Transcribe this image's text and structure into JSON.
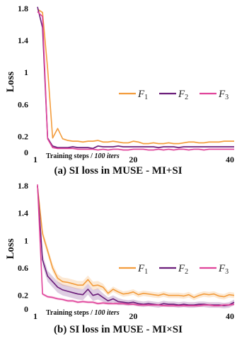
{
  "chart_data": [
    {
      "type": "line",
      "caption": "(a) SI loss in MUSE - MI+SI",
      "ylabel": "Loss",
      "xlabel": "Training steps / ",
      "xlabel_unit": "100 iters",
      "xlim": [
        1,
        40
      ],
      "ylim": [
        0,
        1.8
      ],
      "yticks": [
        "0",
        "0.2",
        "0.6",
        "1",
        "1.4",
        "1.8"
      ],
      "ytick_values": [
        0,
        0.2,
        0.6,
        1,
        1.4,
        1.8
      ],
      "xticks": [
        "1",
        "20",
        "40"
      ],
      "xtick_values": [
        1,
        20,
        40
      ],
      "legend_position": "right-middle",
      "x": [
        1,
        2,
        3,
        4,
        5,
        6,
        7,
        8,
        9,
        10,
        11,
        12,
        13,
        14,
        15,
        16,
        17,
        18,
        19,
        20,
        21,
        22,
        23,
        24,
        25,
        26,
        27,
        28,
        29,
        30,
        31,
        32,
        33,
        34,
        35,
        36,
        37,
        38,
        39,
        40
      ],
      "series": [
        {
          "name": "F",
          "sub": "1",
          "color": "#f39c3c",
          "values": [
            1.79,
            1.75,
            1.05,
            0.18,
            0.3,
            0.17,
            0.15,
            0.14,
            0.14,
            0.13,
            0.14,
            0.14,
            0.15,
            0.13,
            0.13,
            0.14,
            0.13,
            0.12,
            0.12,
            0.14,
            0.13,
            0.11,
            0.11,
            0.12,
            0.11,
            0.11,
            0.12,
            0.11,
            0.11,
            0.12,
            0.13,
            0.13,
            0.12,
            0.12,
            0.13,
            0.13,
            0.13,
            0.14,
            0.14,
            0.14
          ],
          "band": [
            0.01,
            0.01,
            0.01,
            0.01,
            0.01,
            0.01,
            0.01,
            0.01,
            0.01,
            0.01,
            0.01,
            0.01,
            0.01,
            0.01,
            0.01,
            0.01,
            0.01,
            0.01,
            0.01,
            0.01,
            0.01,
            0.01,
            0.01,
            0.01,
            0.01,
            0.01,
            0.01,
            0.01,
            0.01,
            0.01,
            0.01,
            0.01,
            0.01,
            0.01,
            0.01,
            0.01,
            0.01,
            0.01,
            0.01,
            0.01
          ]
        },
        {
          "name": "F",
          "sub": "2",
          "color": "#6b1d7a",
          "values": [
            1.82,
            1.56,
            0.18,
            0.08,
            0.06,
            0.06,
            0.06,
            0.07,
            0.06,
            0.06,
            0.06,
            0.05,
            0.08,
            0.07,
            0.07,
            0.07,
            0.08,
            0.07,
            0.07,
            0.07,
            0.07,
            0.07,
            0.07,
            0.07,
            0.06,
            0.07,
            0.07,
            0.07,
            0.06,
            0.07,
            0.07,
            0.07,
            0.07,
            0.07,
            0.07,
            0.07,
            0.07,
            0.07,
            0.07,
            0.07
          ],
          "band": [
            0.01,
            0.01,
            0.01,
            0.01,
            0.01,
            0.01,
            0.01,
            0.01,
            0.01,
            0.01,
            0.01,
            0.01,
            0.01,
            0.01,
            0.01,
            0.01,
            0.01,
            0.01,
            0.01,
            0.01,
            0.01,
            0.01,
            0.01,
            0.01,
            0.01,
            0.01,
            0.01,
            0.01,
            0.01,
            0.01,
            0.01,
            0.01,
            0.01,
            0.01,
            0.01,
            0.01,
            0.01,
            0.01,
            0.01,
            0.01
          ]
        },
        {
          "name": "F",
          "sub": "3",
          "color": "#e0439a",
          "values": [
            1.76,
            1.7,
            0.17,
            0.06,
            0.05,
            0.05,
            0.05,
            0.05,
            0.04,
            0.04,
            0.04,
            0.04,
            0.03,
            0.04,
            0.03,
            0.04,
            0.04,
            0.03,
            0.03,
            0.04,
            0.04,
            0.04,
            0.03,
            0.03,
            0.04,
            0.03,
            0.04,
            0.03,
            0.04,
            0.04,
            0.03,
            0.04,
            0.04,
            0.03,
            0.04,
            0.04,
            0.04,
            0.04,
            0.04,
            0.04
          ],
          "band": [
            0.01,
            0.01,
            0.01,
            0.01,
            0.01,
            0.01,
            0.01,
            0.01,
            0.01,
            0.01,
            0.01,
            0.01,
            0.01,
            0.01,
            0.01,
            0.01,
            0.01,
            0.01,
            0.01,
            0.01,
            0.01,
            0.01,
            0.01,
            0.01,
            0.01,
            0.01,
            0.01,
            0.01,
            0.01,
            0.01,
            0.01,
            0.01,
            0.01,
            0.01,
            0.01,
            0.01,
            0.01,
            0.01,
            0.01,
            0.01
          ]
        }
      ]
    },
    {
      "type": "line",
      "caption": "(b) SI loss in MUSE - MI×SI",
      "ylabel": "Loss",
      "xlabel": "Training steps / ",
      "xlabel_unit": "100 iters",
      "xlim": [
        1,
        40
      ],
      "ylim": [
        0,
        1.8
      ],
      "yticks": [
        "0",
        "0.2",
        "0.6",
        "1",
        "1.4",
        "1.8"
      ],
      "ytick_values": [
        0,
        0.2,
        0.6,
        1,
        1.4,
        1.8
      ],
      "xticks": [
        "1",
        "20",
        "40"
      ],
      "xtick_values": [
        1,
        20,
        40
      ],
      "legend_position": "right-middle",
      "x": [
        1,
        2,
        3,
        4,
        5,
        6,
        7,
        8,
        9,
        10,
        11,
        12,
        13,
        14,
        15,
        16,
        17,
        18,
        19,
        20,
        21,
        22,
        23,
        24,
        25,
        26,
        27,
        28,
        29,
        30,
        31,
        32,
        33,
        34,
        35,
        36,
        37,
        38,
        39,
        40
      ],
      "series": [
        {
          "name": "F",
          "sub": "1",
          "color": "#f39c3c",
          "values": [
            1.79,
            1.1,
            0.85,
            0.6,
            0.45,
            0.4,
            0.39,
            0.37,
            0.35,
            0.35,
            0.43,
            0.34,
            0.35,
            0.32,
            0.23,
            0.29,
            0.25,
            0.22,
            0.23,
            0.25,
            0.21,
            0.23,
            0.22,
            0.21,
            0.2,
            0.22,
            0.2,
            0.2,
            0.2,
            0.19,
            0.21,
            0.17,
            0.2,
            0.22,
            0.21,
            0.22,
            0.19,
            0.18,
            0.21,
            0.2
          ],
          "band": [
            0.02,
            0.06,
            0.06,
            0.06,
            0.06,
            0.06,
            0.06,
            0.06,
            0.06,
            0.06,
            0.06,
            0.06,
            0.06,
            0.05,
            0.04,
            0.04,
            0.04,
            0.04,
            0.04,
            0.04,
            0.04,
            0.04,
            0.04,
            0.04,
            0.04,
            0.04,
            0.04,
            0.04,
            0.04,
            0.04,
            0.04,
            0.04,
            0.04,
            0.04,
            0.04,
            0.04,
            0.04,
            0.04,
            0.04,
            0.04
          ]
        },
        {
          "name": "F",
          "sub": "2",
          "color": "#6b1d7a",
          "values": [
            1.8,
            0.72,
            0.48,
            0.4,
            0.32,
            0.28,
            0.26,
            0.24,
            0.22,
            0.21,
            0.29,
            0.2,
            0.22,
            0.17,
            0.12,
            0.15,
            0.11,
            0.1,
            0.09,
            0.1,
            0.08,
            0.07,
            0.08,
            0.07,
            0.06,
            0.08,
            0.07,
            0.07,
            0.06,
            0.07,
            0.06,
            0.06,
            0.07,
            0.07,
            0.06,
            0.06,
            0.06,
            0.05,
            0.06,
            0.1
          ],
          "band": [
            0.02,
            0.08,
            0.08,
            0.08,
            0.08,
            0.08,
            0.08,
            0.08,
            0.08,
            0.08,
            0.08,
            0.08,
            0.08,
            0.06,
            0.05,
            0.05,
            0.05,
            0.04,
            0.04,
            0.04,
            0.04,
            0.04,
            0.04,
            0.04,
            0.04,
            0.04,
            0.04,
            0.04,
            0.04,
            0.04,
            0.04,
            0.04,
            0.04,
            0.04,
            0.04,
            0.04,
            0.04,
            0.04,
            0.04,
            0.04
          ]
        },
        {
          "name": "F",
          "sub": "3",
          "color": "#e0439a",
          "values": [
            1.82,
            0.22,
            0.18,
            0.17,
            0.15,
            0.14,
            0.12,
            0.12,
            0.1,
            0.11,
            0.1,
            0.1,
            0.08,
            0.09,
            0.08,
            0.08,
            0.08,
            0.08,
            0.07,
            0.07,
            0.06,
            0.06,
            0.06,
            0.06,
            0.06,
            0.05,
            0.05,
            0.05,
            0.05,
            0.05,
            0.05,
            0.05,
            0.05,
            0.06,
            0.06,
            0.05,
            0.05,
            0.06,
            0.06,
            0.07
          ],
          "band": [
            0.01,
            0.02,
            0.02,
            0.02,
            0.02,
            0.02,
            0.02,
            0.02,
            0.02,
            0.02,
            0.02,
            0.02,
            0.02,
            0.02,
            0.02,
            0.02,
            0.02,
            0.02,
            0.02,
            0.02,
            0.02,
            0.02,
            0.02,
            0.02,
            0.02,
            0.02,
            0.02,
            0.02,
            0.02,
            0.02,
            0.02,
            0.02,
            0.02,
            0.02,
            0.02,
            0.02,
            0.02,
            0.02,
            0.02,
            0.02
          ]
        }
      ]
    }
  ]
}
